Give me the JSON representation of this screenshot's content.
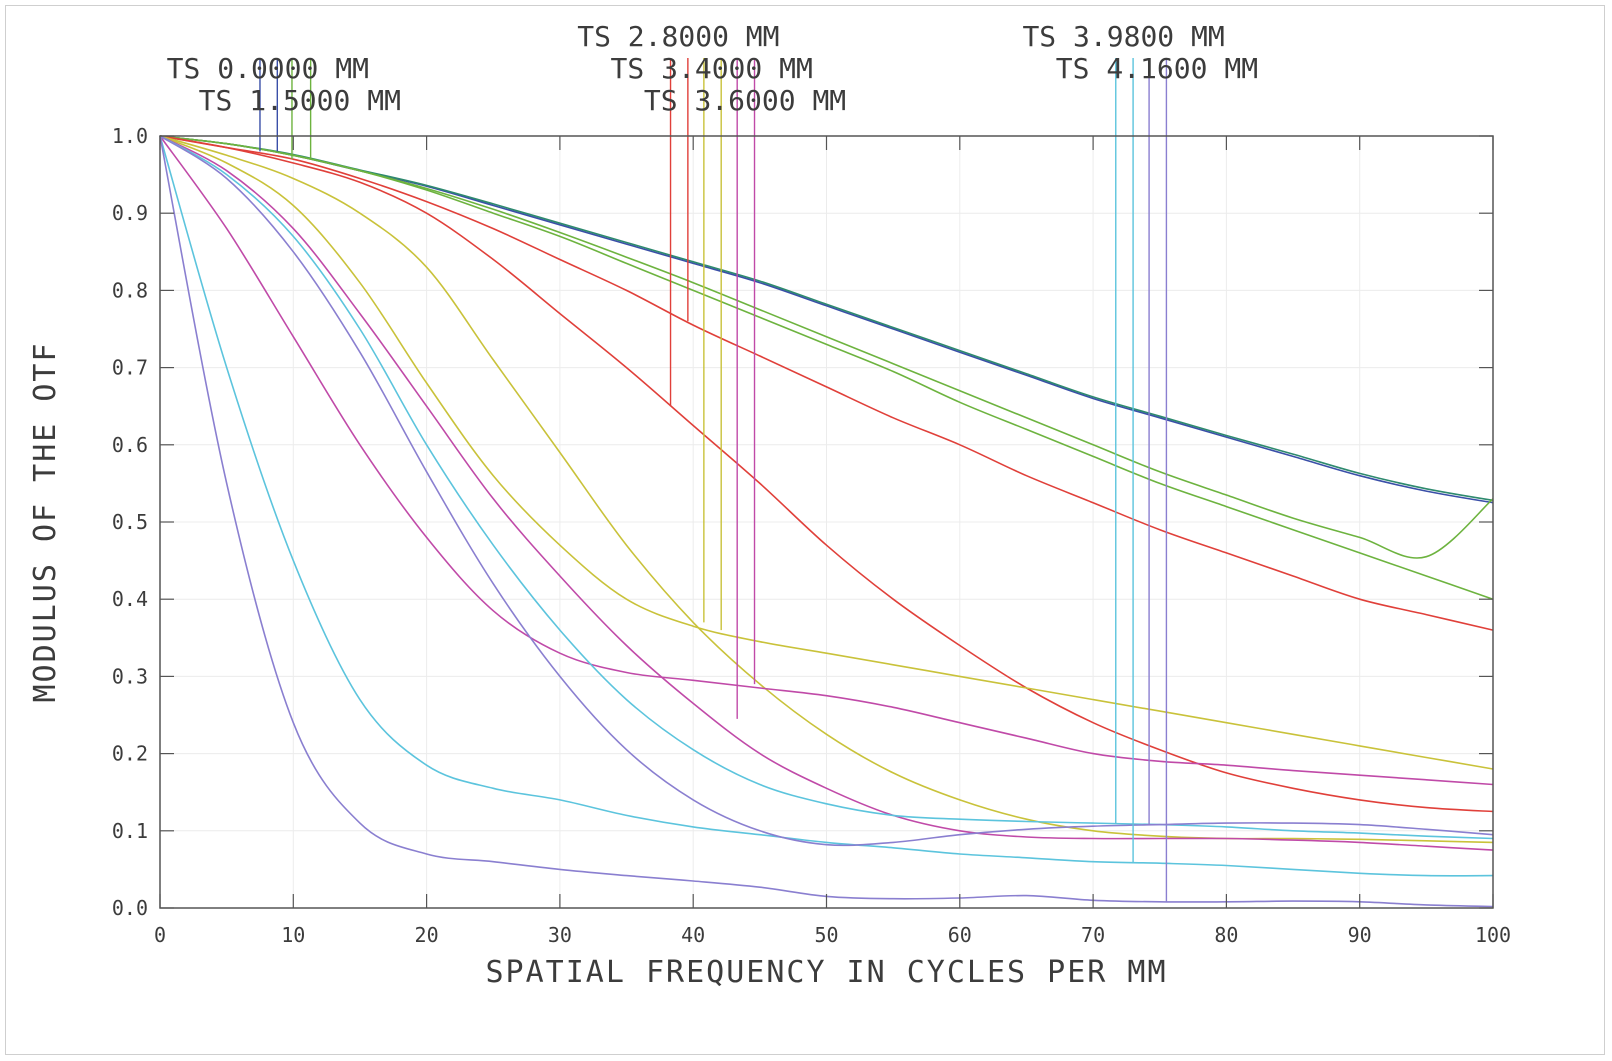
{
  "chart_data": {
    "type": "line",
    "title": "",
    "xlabel": "SPATIAL FREQUENCY IN CYCLES PER MM",
    "ylabel": "MODULUS OF THE OTF",
    "xlim": [
      0,
      100
    ],
    "ylim": [
      0,
      1
    ],
    "grid": true,
    "x_ticks": [
      0,
      10,
      20,
      30,
      40,
      50,
      60,
      70,
      80,
      90,
      100
    ],
    "x_tick_labels": [
      "0",
      "10",
      "20",
      "30",
      "40",
      "50",
      "60",
      "70",
      "80",
      "90",
      "100"
    ],
    "y_ticks": [
      0,
      0.1,
      0.2,
      0.3,
      0.4,
      0.5,
      0.6,
      0.7,
      0.8,
      0.9,
      1.0
    ],
    "y_tick_labels": [
      "0.0",
      "0.1",
      "0.2",
      "0.3",
      "0.4",
      "0.5",
      "0.6",
      "0.7",
      "0.8",
      "0.9",
      "1.0"
    ],
    "field_labels": [
      {
        "text": "TS 0.0000 MM",
        "color": "#3a4fa8",
        "row": 2
      },
      {
        "text": "TS 1.5000 MM",
        "color": "#6db33f",
        "row": 3
      },
      {
        "text": "TS 2.8000 MM",
        "color": "#e0403a",
        "row": 1
      },
      {
        "text": "TS 3.4000 MM",
        "color": "#c9c23a",
        "row": 2
      },
      {
        "text": "TS 3.6000 MM",
        "color": "#c04aa8",
        "row": 3
      },
      {
        "text": "TS 3.9800 MM",
        "color": "#5cc4dd",
        "row": 1
      },
      {
        "text": "TS 4.1600 MM",
        "color": "#8a7fd0",
        "row": 2
      }
    ],
    "leaders": [
      {
        "x": 7.5,
        "end_y": 0.98,
        "color": "#3a4fa8"
      },
      {
        "x": 8.8,
        "end_y": 0.98,
        "color": "#3a4fa8"
      },
      {
        "x": 9.9,
        "end_y": 0.97,
        "color": "#6db33f"
      },
      {
        "x": 11.3,
        "end_y": 0.97,
        "color": "#6db33f"
      },
      {
        "x": 38.3,
        "end_y": 0.65,
        "color": "#e0403a"
      },
      {
        "x": 39.6,
        "end_y": 0.76,
        "color": "#e0403a"
      },
      {
        "x": 40.8,
        "end_y": 0.37,
        "color": "#c9c23a"
      },
      {
        "x": 42.1,
        "end_y": 0.36,
        "color": "#c9c23a"
      },
      {
        "x": 43.3,
        "end_y": 0.245,
        "color": "#c04aa8"
      },
      {
        "x": 44.6,
        "end_y": 0.29,
        "color": "#c04aa8"
      },
      {
        "x": 71.7,
        "end_y": 0.11,
        "color": "#5cc4dd"
      },
      {
        "x": 73.0,
        "end_y": 0.058,
        "color": "#5cc4dd"
      },
      {
        "x": 74.2,
        "end_y": 0.107,
        "color": "#8a7fd0"
      },
      {
        "x": 75.5,
        "end_y": 0.008,
        "color": "#8a7fd0"
      }
    ],
    "x": [
      0,
      5,
      10,
      15,
      20,
      25,
      30,
      35,
      40,
      45,
      50,
      55,
      60,
      65,
      70,
      75,
      80,
      85,
      90,
      95,
      100
    ],
    "series": [
      {
        "color": "#3a4fa8",
        "values": [
          1.0,
          0.99,
          0.975,
          0.955,
          0.935,
          0.91,
          0.885,
          0.86,
          0.835,
          0.81,
          0.78,
          0.75,
          0.72,
          0.69,
          0.66,
          0.635,
          0.61,
          0.585,
          0.56,
          0.54,
          0.525
        ]
      },
      {
        "color": "#2e8a6e",
        "values": [
          1.0,
          0.99,
          0.976,
          0.956,
          0.936,
          0.912,
          0.887,
          0.862,
          0.837,
          0.812,
          0.782,
          0.752,
          0.722,
          0.692,
          0.662,
          0.637,
          0.612,
          0.588,
          0.563,
          0.543,
          0.528
        ]
      },
      {
        "color": "#6db33f",
        "values": [
          1.0,
          0.99,
          0.975,
          0.955,
          0.93,
          0.9,
          0.87,
          0.835,
          0.8,
          0.765,
          0.73,
          0.695,
          0.655,
          0.62,
          0.585,
          0.55,
          0.52,
          0.49,
          0.46,
          0.43,
          0.4
        ]
      },
      {
        "color": "#6db33f",
        "values": [
          1.0,
          0.99,
          0.975,
          0.955,
          0.932,
          0.905,
          0.875,
          0.843,
          0.81,
          0.775,
          0.74,
          0.705,
          0.67,
          0.635,
          0.6,
          0.565,
          0.535,
          0.505,
          0.48,
          0.455,
          0.53
        ]
      },
      {
        "color": "#e0403a",
        "values": [
          1.0,
          0.985,
          0.97,
          0.945,
          0.915,
          0.88,
          0.84,
          0.8,
          0.755,
          0.715,
          0.675,
          0.635,
          0.6,
          0.56,
          0.525,
          0.49,
          0.46,
          0.43,
          0.4,
          0.38,
          0.36
        ]
      },
      {
        "color": "#e0403a",
        "values": [
          1.0,
          0.985,
          0.965,
          0.94,
          0.9,
          0.84,
          0.77,
          0.7,
          0.625,
          0.55,
          0.47,
          0.4,
          0.34,
          0.285,
          0.24,
          0.205,
          0.175,
          0.155,
          0.14,
          0.13,
          0.125
        ]
      },
      {
        "color": "#c9c23a",
        "values": [
          1.0,
          0.975,
          0.945,
          0.9,
          0.83,
          0.71,
          0.59,
          0.47,
          0.37,
          0.29,
          0.225,
          0.175,
          0.14,
          0.115,
          0.1,
          0.093,
          0.09,
          0.09,
          0.089,
          0.087,
          0.085
        ]
      },
      {
        "color": "#c9c23a",
        "values": [
          1.0,
          0.965,
          0.91,
          0.81,
          0.68,
          0.56,
          0.47,
          0.4,
          0.365,
          0.345,
          0.33,
          0.315,
          0.3,
          0.285,
          0.27,
          0.255,
          0.24,
          0.225,
          0.21,
          0.195,
          0.18
        ]
      },
      {
        "color": "#c04aa8",
        "values": [
          1.0,
          0.955,
          0.88,
          0.77,
          0.65,
          0.53,
          0.43,
          0.34,
          0.265,
          0.2,
          0.155,
          0.12,
          0.1,
          0.092,
          0.09,
          0.09,
          0.09,
          0.088,
          0.085,
          0.08,
          0.075
        ]
      },
      {
        "color": "#c04aa8",
        "values": [
          1.0,
          0.88,
          0.74,
          0.6,
          0.48,
          0.385,
          0.33,
          0.305,
          0.295,
          0.285,
          0.275,
          0.26,
          0.24,
          0.22,
          0.2,
          0.19,
          0.185,
          0.178,
          0.172,
          0.166,
          0.16
        ]
      },
      {
        "color": "#5cc4dd",
        "values": [
          1.0,
          0.95,
          0.87,
          0.75,
          0.6,
          0.47,
          0.36,
          0.27,
          0.205,
          0.16,
          0.135,
          0.12,
          0.115,
          0.112,
          0.11,
          0.108,
          0.105,
          0.1,
          0.097,
          0.093,
          0.09
        ]
      },
      {
        "color": "#5cc4dd",
        "values": [
          1.0,
          0.7,
          0.45,
          0.27,
          0.185,
          0.155,
          0.14,
          0.12,
          0.105,
          0.095,
          0.085,
          0.078,
          0.07,
          0.065,
          0.06,
          0.058,
          0.055,
          0.05,
          0.045,
          0.042,
          0.042
        ]
      },
      {
        "color": "#8a7fd0",
        "values": [
          1.0,
          0.945,
          0.85,
          0.72,
          0.565,
          0.42,
          0.3,
          0.205,
          0.14,
          0.1,
          0.082,
          0.085,
          0.095,
          0.102,
          0.106,
          0.108,
          0.11,
          0.11,
          0.108,
          0.102,
          0.095
        ]
      },
      {
        "color": "#8a7fd0",
        "values": [
          1.0,
          0.55,
          0.24,
          0.11,
          0.07,
          0.06,
          0.05,
          0.042,
          0.035,
          0.027,
          0.015,
          0.012,
          0.013,
          0.016,
          0.01,
          0.008,
          0.008,
          0.009,
          0.008,
          0.004,
          0.002
        ]
      }
    ]
  }
}
